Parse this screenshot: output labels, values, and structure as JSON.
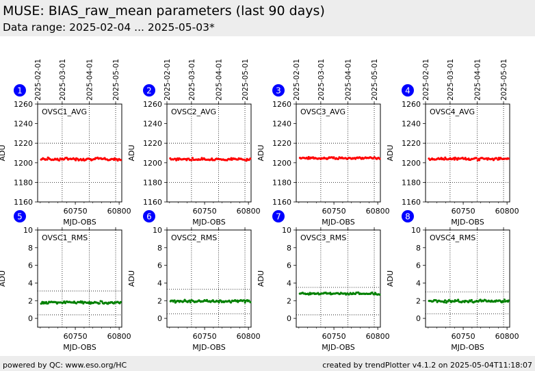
{
  "header": {
    "title": "MUSE: BIAS_raw_mean parameters (last 90 days)",
    "subtitle": "Data range: 2025-02-04 ... 2025-05-03*"
  },
  "footer": {
    "left": "powered by QC: www.eso.org/HC",
    "right": "created by trendPlotter v4.1.2 on 2025-05-04T11:18:07"
  },
  "date_ticks": [
    "2025-02-01",
    "2025-03-01",
    "2025-04-01",
    "2025-05-01"
  ],
  "date_tick_mjd": [
    60707,
    60735,
    60766,
    60796
  ],
  "chart_data": [
    {
      "type": "scatter",
      "panel": "1",
      "name": "OVSC1_AVG",
      "ylabel": "ADU",
      "xlabel": "MJD-OBS",
      "xlim": [
        60707,
        60803
      ],
      "ylim": [
        1160,
        1260
      ],
      "yticks": [
        1160,
        1180,
        1200,
        1220,
        1240,
        1260
      ],
      "xticks": [
        60750,
        60800
      ],
      "color": "#ff0000",
      "hlines": [
        1180,
        1220
      ],
      "x_range": [
        60711,
        60802
      ],
      "mean": 1203.8,
      "jitter": 1.2
    },
    {
      "type": "scatter",
      "panel": "2",
      "name": "OVSC2_AVG",
      "ylabel": "ADU",
      "xlabel": "MJD-OBS",
      "xlim": [
        60707,
        60803
      ],
      "ylim": [
        1160,
        1260
      ],
      "yticks": [
        1160,
        1180,
        1200,
        1220,
        1240,
        1260
      ],
      "xticks": [
        60750,
        60800
      ],
      "color": "#ff0000",
      "hlines": [
        1180,
        1220
      ],
      "x_range": [
        60711,
        60802
      ],
      "mean": 1203.6,
      "jitter": 1.1
    },
    {
      "type": "scatter",
      "panel": "3",
      "name": "OVSC3_AVG",
      "ylabel": "ADU",
      "xlabel": "MJD-OBS",
      "xlim": [
        60707,
        60803
      ],
      "ylim": [
        1160,
        1260
      ],
      "yticks": [
        1160,
        1180,
        1200,
        1220,
        1240,
        1260
      ],
      "xticks": [
        60750,
        60800
      ],
      "color": "#ff0000",
      "hlines": [
        1180,
        1220
      ],
      "x_range": [
        60711,
        60802
      ],
      "mean": 1204.8,
      "jitter": 0.9
    },
    {
      "type": "scatter",
      "panel": "4",
      "name": "OVSC4_AVG",
      "ylabel": "ADU",
      "xlabel": "MJD-OBS",
      "xlim": [
        60707,
        60803
      ],
      "ylim": [
        1160,
        1260
      ],
      "yticks": [
        1160,
        1180,
        1200,
        1220,
        1240,
        1260
      ],
      "xticks": [
        60750,
        60800
      ],
      "color": "#ff0000",
      "hlines": [
        1180,
        1220
      ],
      "x_range": [
        60711,
        60802
      ],
      "mean": 1204.0,
      "jitter": 1.1
    },
    {
      "type": "scatter",
      "panel": "5",
      "name": "OVSC1_RMS",
      "ylabel": "ADU",
      "xlabel": "MJD-OBS",
      "xlim": [
        60707,
        60803
      ],
      "ylim": [
        -1,
        10
      ],
      "yticks": [
        0,
        2,
        4,
        6,
        8,
        10
      ],
      "xticks": [
        60750,
        60800
      ],
      "color": "#008000",
      "hlines": [
        0.4,
        3.1
      ],
      "x_range": [
        60711,
        60802
      ],
      "mean": 1.8,
      "jitter": 0.12
    },
    {
      "type": "scatter",
      "panel": "6",
      "name": "OVSC2_RMS",
      "ylabel": "ADU",
      "xlabel": "MJD-OBS",
      "xlim": [
        60707,
        60803
      ],
      "ylim": [
        -1,
        10
      ],
      "yticks": [
        0,
        2,
        4,
        6,
        8,
        10
      ],
      "xticks": [
        60750,
        60800
      ],
      "color": "#008000",
      "hlines": [
        0.5,
        3.3
      ],
      "x_range": [
        60711,
        60802
      ],
      "mean": 1.95,
      "jitter": 0.13
    },
    {
      "type": "scatter",
      "panel": "7",
      "name": "OVSC3_RMS",
      "ylabel": "ADU",
      "xlabel": "MJD-OBS",
      "xlim": [
        60707,
        60803
      ],
      "ylim": [
        -1,
        10
      ],
      "yticks": [
        0,
        2,
        4,
        6,
        8,
        10
      ],
      "xticks": [
        60750,
        60800
      ],
      "color": "#008000",
      "hlines": [
        0.4,
        3.5
      ],
      "x_range": [
        60711,
        60802
      ],
      "mean": 2.8,
      "jitter": 0.1
    },
    {
      "type": "scatter",
      "panel": "8",
      "name": "OVSC4_RMS",
      "ylabel": "ADU",
      "xlabel": "MJD-OBS",
      "xlim": [
        60707,
        60803
      ],
      "ylim": [
        -1,
        10
      ],
      "yticks": [
        0,
        2,
        4,
        6,
        8,
        10
      ],
      "xticks": [
        60750,
        60800
      ],
      "color": "#008000",
      "hlines": [
        0.5,
        3.0
      ],
      "x_range": [
        60711,
        60802
      ],
      "mean": 1.95,
      "jitter": 0.13
    }
  ]
}
